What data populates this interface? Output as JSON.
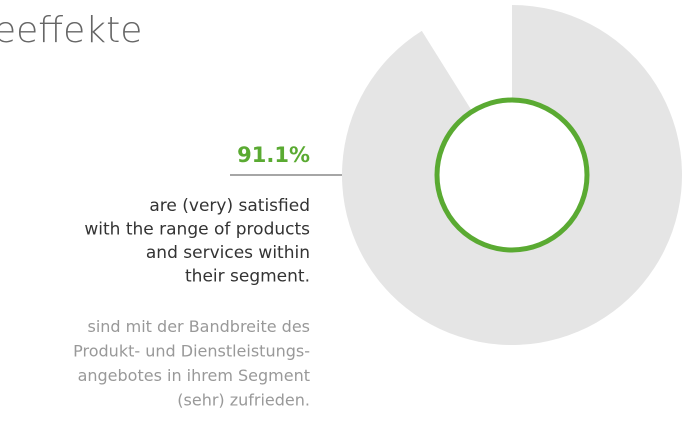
{
  "chart_data": {
    "type": "pie",
    "title": "eeffekte",
    "values": [
      91.1
    ],
    "value_labels": [
      "91.1%"
    ],
    "color": "#e5e5e5",
    "description": [
      "are (very) satisfied",
      "with the range of products",
      "and services within",
      "their segment."
    ],
    "description_de": [
      "sind mit der Bandbreite des",
      "Produkt- und Dienstleistungs-",
      "angebotes in ihrem Segment",
      "(sehr) zufrieden."
    ]
  }
}
